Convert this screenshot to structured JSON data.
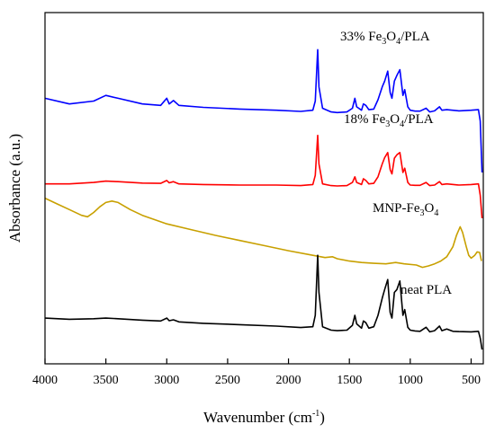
{
  "chart_data": {
    "type": "line",
    "xlabel": "Wavenumber (cm",
    "xlabel_sup": "-1",
    "xlabel_close": ")",
    "ylabel": "Absorbance (a.u.)",
    "xlim": [
      4000,
      400
    ],
    "x_reversed": true,
    "xticks": [
      4000,
      3500,
      3000,
      2500,
      2000,
      1500,
      1000,
      500
    ],
    "grid": false,
    "legend": "none",
    "series": [
      {
        "name": "33% Fe3O4/PLA",
        "label_parts": [
          "33% Fe",
          "3",
          "O",
          "4",
          "/PLA"
        ],
        "color": "#0000ff",
        "points": [
          [
            4000,
            0.88
          ],
          [
            3800,
            0.86
          ],
          [
            3600,
            0.87
          ],
          [
            3500,
            0.89
          ],
          [
            3400,
            0.88
          ],
          [
            3200,
            0.86
          ],
          [
            3050,
            0.855
          ],
          [
            3000,
            0.88
          ],
          [
            2980,
            0.86
          ],
          [
            2945,
            0.872
          ],
          [
            2900,
            0.855
          ],
          [
            2700,
            0.848
          ],
          [
            2400,
            0.842
          ],
          [
            2100,
            0.838
          ],
          [
            1900,
            0.834
          ],
          [
            1800,
            0.838
          ],
          [
            1780,
            0.87
          ],
          [
            1760,
            1.05
          ],
          [
            1750,
            0.92
          ],
          [
            1720,
            0.845
          ],
          [
            1650,
            0.832
          ],
          [
            1600,
            0.83
          ],
          [
            1520,
            0.832
          ],
          [
            1475,
            0.845
          ],
          [
            1455,
            0.88
          ],
          [
            1440,
            0.85
          ],
          [
            1400,
            0.838
          ],
          [
            1385,
            0.86
          ],
          [
            1365,
            0.855
          ],
          [
            1340,
            0.84
          ],
          [
            1300,
            0.842
          ],
          [
            1265,
            0.875
          ],
          [
            1230,
            0.92
          ],
          [
            1210,
            0.94
          ],
          [
            1185,
            0.975
          ],
          [
            1165,
            0.9
          ],
          [
            1150,
            0.88
          ],
          [
            1130,
            0.94
          ],
          [
            1110,
            0.96
          ],
          [
            1085,
            0.98
          ],
          [
            1060,
            0.89
          ],
          [
            1045,
            0.91
          ],
          [
            1020,
            0.85
          ],
          [
            1000,
            0.838
          ],
          [
            960,
            0.835
          ],
          [
            920,
            0.835
          ],
          [
            870,
            0.845
          ],
          [
            840,
            0.832
          ],
          [
            800,
            0.836
          ],
          [
            760,
            0.85
          ],
          [
            740,
            0.838
          ],
          [
            700,
            0.84
          ],
          [
            600,
            0.836
          ],
          [
            500,
            0.838
          ],
          [
            440,
            0.84
          ],
          [
            425,
            0.8
          ],
          [
            410,
            0.62
          ]
        ]
      },
      {
        "name": "18% Fe3O4/PLA",
        "label_parts": [
          "18% Fe",
          "3",
          "O",
          "4",
          "/PLA"
        ],
        "color": "#ff0000",
        "points": [
          [
            4000,
            0.58
          ],
          [
            3800,
            0.58
          ],
          [
            3600,
            0.585
          ],
          [
            3500,
            0.59
          ],
          [
            3400,
            0.588
          ],
          [
            3200,
            0.583
          ],
          [
            3050,
            0.582
          ],
          [
            3000,
            0.592
          ],
          [
            2980,
            0.584
          ],
          [
            2945,
            0.588
          ],
          [
            2900,
            0.58
          ],
          [
            2700,
            0.578
          ],
          [
            2400,
            0.576
          ],
          [
            2100,
            0.576
          ],
          [
            1900,
            0.574
          ],
          [
            1800,
            0.578
          ],
          [
            1780,
            0.61
          ],
          [
            1760,
            0.75
          ],
          [
            1750,
            0.65
          ],
          [
            1720,
            0.58
          ],
          [
            1650,
            0.574
          ],
          [
            1600,
            0.573
          ],
          [
            1520,
            0.574
          ],
          [
            1475,
            0.585
          ],
          [
            1455,
            0.605
          ],
          [
            1440,
            0.585
          ],
          [
            1400,
            0.578
          ],
          [
            1385,
            0.598
          ],
          [
            1365,
            0.592
          ],
          [
            1340,
            0.58
          ],
          [
            1300,
            0.582
          ],
          [
            1265,
            0.605
          ],
          [
            1230,
            0.65
          ],
          [
            1210,
            0.672
          ],
          [
            1185,
            0.69
          ],
          [
            1165,
            0.63
          ],
          [
            1150,
            0.615
          ],
          [
            1130,
            0.67
          ],
          [
            1110,
            0.682
          ],
          [
            1085,
            0.69
          ],
          [
            1060,
            0.62
          ],
          [
            1045,
            0.635
          ],
          [
            1020,
            0.585
          ],
          [
            1000,
            0.576
          ],
          [
            960,
            0.575
          ],
          [
            920,
            0.575
          ],
          [
            870,
            0.585
          ],
          [
            840,
            0.574
          ],
          [
            800,
            0.576
          ],
          [
            760,
            0.588
          ],
          [
            740,
            0.578
          ],
          [
            700,
            0.58
          ],
          [
            600,
            0.576
          ],
          [
            500,
            0.578
          ],
          [
            440,
            0.58
          ],
          [
            425,
            0.54
          ],
          [
            410,
            0.46
          ]
        ]
      },
      {
        "name": "MNP-Fe3O4",
        "label_parts": [
          "MNP-Fe",
          "3",
          "O",
          "4",
          ""
        ],
        "color": "#c8a000",
        "points": [
          [
            4000,
            0.53
          ],
          [
            3900,
            0.51
          ],
          [
            3800,
            0.49
          ],
          [
            3700,
            0.47
          ],
          [
            3650,
            0.465
          ],
          [
            3600,
            0.48
          ],
          [
            3550,
            0.5
          ],
          [
            3500,
            0.515
          ],
          [
            3450,
            0.52
          ],
          [
            3400,
            0.515
          ],
          [
            3300,
            0.49
          ],
          [
            3200,
            0.47
          ],
          [
            3100,
            0.455
          ],
          [
            3000,
            0.44
          ],
          [
            2800,
            0.42
          ],
          [
            2600,
            0.4
          ],
          [
            2400,
            0.382
          ],
          [
            2200,
            0.364
          ],
          [
            2000,
            0.346
          ],
          [
            1800,
            0.33
          ],
          [
            1700,
            0.322
          ],
          [
            1640,
            0.325
          ],
          [
            1600,
            0.318
          ],
          [
            1500,
            0.31
          ],
          [
            1400,
            0.305
          ],
          [
            1300,
            0.302
          ],
          [
            1200,
            0.3
          ],
          [
            1120,
            0.305
          ],
          [
            1050,
            0.3
          ],
          [
            950,
            0.296
          ],
          [
            900,
            0.288
          ],
          [
            850,
            0.293
          ],
          [
            800,
            0.3
          ],
          [
            750,
            0.31
          ],
          [
            700,
            0.325
          ],
          [
            650,
            0.36
          ],
          [
            620,
            0.4
          ],
          [
            590,
            0.43
          ],
          [
            570,
            0.41
          ],
          [
            540,
            0.36
          ],
          [
            520,
            0.33
          ],
          [
            500,
            0.32
          ],
          [
            470,
            0.33
          ],
          [
            450,
            0.342
          ],
          [
            430,
            0.34
          ],
          [
            415,
            0.31
          ]
        ]
      },
      {
        "name": "neat PLA",
        "label_parts": [
          "neat PLA",
          "",
          "",
          "",
          ""
        ],
        "color": "#000000",
        "points": [
          [
            4000,
            0.11
          ],
          [
            3800,
            0.106
          ],
          [
            3600,
            0.108
          ],
          [
            3500,
            0.11
          ],
          [
            3400,
            0.108
          ],
          [
            3200,
            0.103
          ],
          [
            3050,
            0.1
          ],
          [
            3000,
            0.11
          ],
          [
            2980,
            0.101
          ],
          [
            2945,
            0.104
          ],
          [
            2900,
            0.097
          ],
          [
            2700,
            0.092
          ],
          [
            2400,
            0.087
          ],
          [
            2100,
            0.082
          ],
          [
            1900,
            0.077
          ],
          [
            1800,
            0.08
          ],
          [
            1780,
            0.12
          ],
          [
            1760,
            0.33
          ],
          [
            1750,
            0.2
          ],
          [
            1720,
            0.08
          ],
          [
            1650,
            0.068
          ],
          [
            1600,
            0.066
          ],
          [
            1520,
            0.068
          ],
          [
            1475,
            0.085
          ],
          [
            1455,
            0.12
          ],
          [
            1440,
            0.09
          ],
          [
            1400,
            0.075
          ],
          [
            1385,
            0.1
          ],
          [
            1365,
            0.094
          ],
          [
            1340,
            0.075
          ],
          [
            1300,
            0.08
          ],
          [
            1265,
            0.12
          ],
          [
            1230,
            0.18
          ],
          [
            1210,
            0.21
          ],
          [
            1185,
            0.245
          ],
          [
            1165,
            0.13
          ],
          [
            1150,
            0.11
          ],
          [
            1130,
            0.2
          ],
          [
            1110,
            0.21
          ],
          [
            1085,
            0.24
          ],
          [
            1060,
            0.12
          ],
          [
            1045,
            0.14
          ],
          [
            1020,
            0.078
          ],
          [
            1000,
            0.068
          ],
          [
            960,
            0.065
          ],
          [
            920,
            0.064
          ],
          [
            870,
            0.078
          ],
          [
            840,
            0.062
          ],
          [
            800,
            0.066
          ],
          [
            760,
            0.082
          ],
          [
            740,
            0.066
          ],
          [
            700,
            0.072
          ],
          [
            650,
            0.064
          ],
          [
            600,
            0.063
          ],
          [
            500,
            0.062
          ],
          [
            440,
            0.064
          ],
          [
            425,
            0.04
          ],
          [
            410,
            0.0
          ]
        ]
      }
    ]
  }
}
